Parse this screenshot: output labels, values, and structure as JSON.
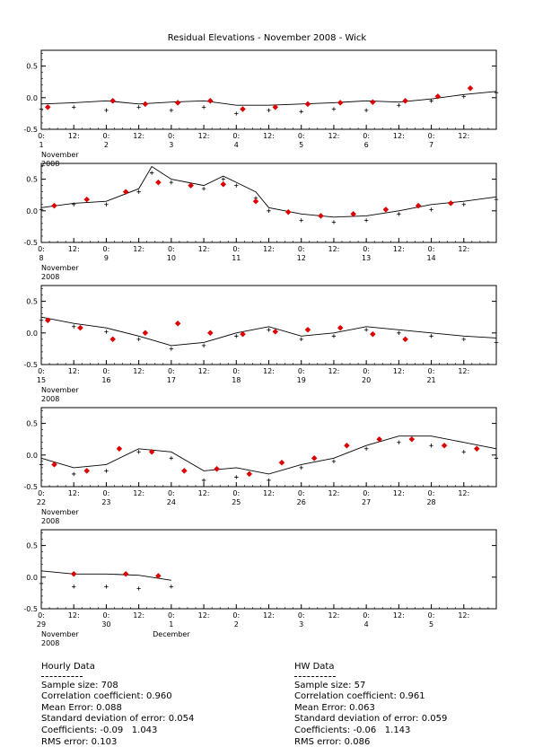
{
  "chart_data": {
    "type": "line",
    "title": "Residual Elevations - November 2008 - Wick",
    "ylim": [
      -0.5,
      0.75
    ],
    "y_ticks": [
      "0.5",
      "0.0",
      "-0.5"
    ],
    "y_tick_values": [
      0.5,
      0.0,
      -0.5
    ],
    "colors": {
      "line": "#000000",
      "points": "#000000",
      "hw": "#dd0000"
    },
    "series_styles": {
      "predicted": "solid-line",
      "observed": "plus-markers",
      "hw": "red-diamonds"
    },
    "panels": [
      {
        "start_day": 1,
        "span_days": 7,
        "x_tick_labels": [
          "0:",
          "12:",
          "0:",
          "12:",
          "0:",
          "12:",
          "0:",
          "12:",
          "0:",
          "12:",
          "0:",
          "12:",
          "0:",
          "12:"
        ],
        "day_labels": [
          "1",
          "2",
          "3",
          "4",
          "5",
          "6",
          "7"
        ],
        "month_label": "November",
        "year_label": "2008",
        "model": [
          [
            1,
            -0.1
          ],
          [
            1.5,
            -0.08
          ],
          [
            2,
            -0.05
          ],
          [
            2.5,
            -0.1
          ],
          [
            3,
            -0.07
          ],
          [
            3.5,
            -0.05
          ],
          [
            4,
            -0.12
          ],
          [
            4.5,
            -0.12
          ],
          [
            5,
            -0.1
          ],
          [
            5.5,
            -0.08
          ],
          [
            6,
            -0.05
          ],
          [
            6.5,
            -0.07
          ],
          [
            7,
            -0.02
          ],
          [
            7.5,
            0.05
          ],
          [
            8,
            0.1
          ]
        ],
        "observed": [
          [
            1,
            -0.18
          ],
          [
            1.5,
            -0.15
          ],
          [
            2,
            -0.2
          ],
          [
            2.5,
            -0.15
          ],
          [
            3,
            -0.2
          ],
          [
            3.5,
            -0.15
          ],
          [
            4,
            -0.25
          ],
          [
            4.5,
            -0.2
          ],
          [
            5,
            -0.22
          ],
          [
            5.5,
            -0.18
          ],
          [
            6,
            -0.2
          ],
          [
            6.5,
            -0.12
          ],
          [
            7,
            -0.05
          ],
          [
            7.5,
            0.02
          ],
          [
            8,
            0.08
          ]
        ],
        "hw": [
          [
            1.1,
            -0.15
          ],
          [
            2.1,
            -0.05
          ],
          [
            2.6,
            -0.1
          ],
          [
            3.1,
            -0.08
          ],
          [
            3.6,
            -0.05
          ],
          [
            4.1,
            -0.18
          ],
          [
            4.6,
            -0.15
          ],
          [
            5.1,
            -0.1
          ],
          [
            5.6,
            -0.08
          ],
          [
            6.1,
            -0.07
          ],
          [
            6.6,
            -0.05
          ],
          [
            7.1,
            0.02
          ],
          [
            7.6,
            0.15
          ]
        ]
      },
      {
        "start_day": 8,
        "span_days": 7,
        "x_tick_labels": [
          "0:",
          "12:",
          "0:",
          "12:",
          "0:",
          "12:",
          "0:",
          "12:",
          "0:",
          "12:",
          "0:",
          "12:",
          "0:",
          "12:"
        ],
        "day_labels": [
          "8",
          "9",
          "10",
          "11",
          "12",
          "13",
          "14"
        ],
        "month_label": "November",
        "year_label": "2008",
        "model": [
          [
            8,
            0.05
          ],
          [
            8.5,
            0.12
          ],
          [
            9,
            0.15
          ],
          [
            9.5,
            0.35
          ],
          [
            9.7,
            0.7
          ],
          [
            10,
            0.5
          ],
          [
            10.5,
            0.4
          ],
          [
            10.8,
            0.55
          ],
          [
            11,
            0.45
          ],
          [
            11.3,
            0.3
          ],
          [
            11.5,
            0.05
          ],
          [
            12,
            -0.05
          ],
          [
            12.5,
            -0.1
          ],
          [
            13,
            -0.08
          ],
          [
            13.5,
            0.0
          ],
          [
            14,
            0.1
          ],
          [
            14.5,
            0.15
          ],
          [
            15,
            0.22
          ]
        ],
        "observed": [
          [
            8,
            0.02
          ],
          [
            8.5,
            0.1
          ],
          [
            9,
            0.1
          ],
          [
            9.5,
            0.3
          ],
          [
            9.7,
            0.6
          ],
          [
            10,
            0.45
          ],
          [
            10.5,
            0.35
          ],
          [
            10.8,
            0.5
          ],
          [
            11,
            0.4
          ],
          [
            11.3,
            0.2
          ],
          [
            11.5,
            0.0
          ],
          [
            12,
            -0.15
          ],
          [
            12.5,
            -0.18
          ],
          [
            13,
            -0.15
          ],
          [
            13.5,
            -0.05
          ],
          [
            14,
            0.02
          ],
          [
            14.5,
            0.1
          ],
          [
            15,
            0.18
          ]
        ],
        "hw": [
          [
            8.2,
            0.08
          ],
          [
            8.7,
            0.18
          ],
          [
            9.3,
            0.3
          ],
          [
            9.8,
            0.45
          ],
          [
            10.3,
            0.4
          ],
          [
            10.8,
            0.42
          ],
          [
            11.3,
            0.15
          ],
          [
            11.8,
            -0.02
          ],
          [
            12.3,
            -0.08
          ],
          [
            12.8,
            -0.05
          ],
          [
            13.3,
            0.02
          ],
          [
            13.8,
            0.08
          ],
          [
            14.3,
            0.12
          ]
        ]
      },
      {
        "start_day": 15,
        "span_days": 7,
        "x_tick_labels": [
          "0:",
          "12:",
          "0:",
          "12:",
          "0:",
          "12:",
          "0:",
          "12:",
          "0:",
          "12:",
          "0:",
          "12:",
          "0:",
          "12:"
        ],
        "day_labels": [
          "15",
          "16",
          "17",
          "18",
          "19",
          "20",
          "21"
        ],
        "month_label": "November",
        "year_label": "2008",
        "model": [
          [
            15,
            0.25
          ],
          [
            15.5,
            0.15
          ],
          [
            16,
            0.08
          ],
          [
            16.5,
            -0.05
          ],
          [
            17,
            -0.2
          ],
          [
            17.5,
            -0.15
          ],
          [
            18,
            0.0
          ],
          [
            18.5,
            0.1
          ],
          [
            19,
            -0.05
          ],
          [
            19.5,
            0.0
          ],
          [
            20,
            0.1
          ],
          [
            20.5,
            0.05
          ],
          [
            21,
            0.0
          ],
          [
            21.5,
            -0.05
          ],
          [
            22,
            -0.08
          ]
        ],
        "observed": [
          [
            15,
            0.2
          ],
          [
            15.5,
            0.1
          ],
          [
            16,
            0.02
          ],
          [
            16.5,
            -0.1
          ],
          [
            17,
            -0.25
          ],
          [
            17.5,
            -0.2
          ],
          [
            18,
            -0.05
          ],
          [
            18.5,
            0.05
          ],
          [
            19,
            -0.1
          ],
          [
            19.5,
            -0.05
          ],
          [
            20,
            0.05
          ],
          [
            20.5,
            0.0
          ],
          [
            21,
            -0.05
          ],
          [
            21.5,
            -0.1
          ],
          [
            22,
            -0.15
          ]
        ],
        "hw": [
          [
            15.1,
            0.2
          ],
          [
            15.6,
            0.08
          ],
          [
            16.1,
            -0.1
          ],
          [
            16.6,
            0.0
          ],
          [
            17.1,
            0.15
          ],
          [
            17.6,
            0.0
          ],
          [
            18.1,
            -0.02
          ],
          [
            18.6,
            0.02
          ],
          [
            19.1,
            0.05
          ],
          [
            19.6,
            0.08
          ],
          [
            20.1,
            -0.02
          ],
          [
            20.6,
            -0.1
          ]
        ]
      },
      {
        "start_day": 22,
        "span_days": 7,
        "x_tick_labels": [
          "0:",
          "12:",
          "0:",
          "12:",
          "0:",
          "12:",
          "0:",
          "12:",
          "0:",
          "12:",
          "0:",
          "12:",
          "0:",
          "12:"
        ],
        "day_labels": [
          "22",
          "23",
          "24",
          "25",
          "26",
          "27",
          "28"
        ],
        "month_label": "November",
        "year_label": "2008",
        "model": [
          [
            22,
            -0.05
          ],
          [
            22.5,
            -0.2
          ],
          [
            23,
            -0.15
          ],
          [
            23.5,
            0.1
          ],
          [
            24,
            0.05
          ],
          [
            24.5,
            -0.25
          ],
          [
            25,
            -0.2
          ],
          [
            25.5,
            -0.3
          ],
          [
            26,
            -0.15
          ],
          [
            26.5,
            -0.05
          ],
          [
            27,
            0.15
          ],
          [
            27.5,
            0.3
          ],
          [
            28,
            0.3
          ],
          [
            28.5,
            0.2
          ],
          [
            29,
            0.1
          ]
        ],
        "observed": [
          [
            22,
            -0.15
          ],
          [
            22.5,
            -0.3
          ],
          [
            23,
            -0.25
          ],
          [
            23.5,
            0.05
          ],
          [
            24,
            -0.05
          ],
          [
            24.5,
            -0.4
          ],
          [
            25,
            -0.35
          ],
          [
            25.5,
            -0.4
          ],
          [
            26,
            -0.2
          ],
          [
            26.5,
            -0.1
          ],
          [
            27,
            0.1
          ],
          [
            27.5,
            0.2
          ],
          [
            28,
            0.15
          ],
          [
            28.5,
            0.05
          ],
          [
            29,
            -0.05
          ]
        ],
        "hw": [
          [
            22.2,
            -0.15
          ],
          [
            22.7,
            -0.25
          ],
          [
            23.2,
            0.1
          ],
          [
            23.7,
            0.05
          ],
          [
            24.2,
            -0.25
          ],
          [
            24.7,
            -0.22
          ],
          [
            25.2,
            -0.3
          ],
          [
            25.7,
            -0.12
          ],
          [
            26.2,
            -0.05
          ],
          [
            26.7,
            0.15
          ],
          [
            27.2,
            0.25
          ],
          [
            27.7,
            0.25
          ],
          [
            28.2,
            0.15
          ],
          [
            28.7,
            0.1
          ]
        ]
      },
      {
        "start_day": 29,
        "span_days": 7,
        "x_tick_labels": [
          "0:",
          "12:",
          "0:",
          "12:",
          "0:",
          "12:",
          "0:",
          "12:",
          "0:",
          "12:",
          "0:",
          "12:",
          "0:",
          "12:"
        ],
        "day_labels": [
          "29",
          "30",
          "1",
          "2",
          "3",
          "4",
          "5"
        ],
        "month_label": "November",
        "year_label": "2008",
        "second_month_label": "December",
        "model": [
          [
            29,
            0.1
          ],
          [
            29.5,
            0.05
          ],
          [
            30,
            0.05
          ],
          [
            30.5,
            0.03
          ],
          [
            31,
            -0.05
          ]
        ],
        "observed": [
          [
            29,
            -0.1
          ],
          [
            29.5,
            -0.15
          ],
          [
            30,
            -0.15
          ],
          [
            30.5,
            -0.18
          ],
          [
            31,
            -0.15
          ]
        ],
        "hw": [
          [
            29.5,
            0.05
          ],
          [
            30.3,
            0.05
          ],
          [
            30.8,
            0.02
          ]
        ]
      }
    ]
  },
  "stats_left": {
    "heading": "Hourly Data",
    "lines": [
      "Sample size: 708",
      "Correlation coefficient: 0.960",
      "Mean Error: 0.088",
      "Standard deviation of error: 0.054",
      "Coefficients: -0.09   1.043",
      "RMS error: 0.103"
    ]
  },
  "stats_right": {
    "heading": "HW Data",
    "lines": [
      "Sample size: 57",
      "Correlation coefficient: 0.961",
      "Mean Error: 0.063",
      "Standard deviation of error: 0.059",
      "Coefficients: -0.06   1.143",
      "RMS error: 0.086"
    ]
  }
}
